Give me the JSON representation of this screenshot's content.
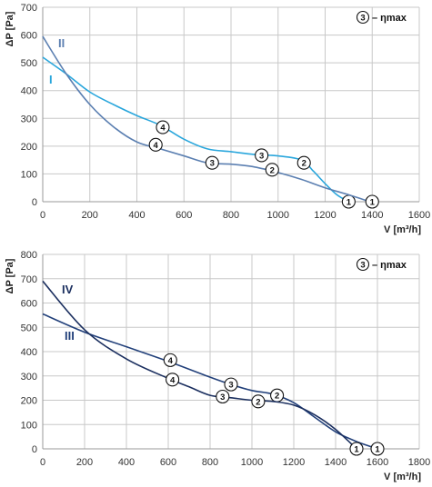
{
  "chart_data": [
    {
      "type": "line",
      "xlabel": "V [m³/h]",
      "ylabel": "ΔP [Pa]",
      "xlim": [
        0,
        1600
      ],
      "ylim": [
        0,
        700
      ],
      "xticks": [
        0,
        200,
        400,
        600,
        800,
        1000,
        1200,
        1400,
        1600
      ],
      "yticks": [
        0,
        100,
        200,
        300,
        400,
        500,
        600,
        700
      ],
      "grid": true,
      "legend_note": {
        "marker": "3",
        "text": "– ηmax"
      },
      "series": [
        {
          "name": "I",
          "color": "#29a6dc",
          "x": [
            0,
            100,
            200,
            300,
            400,
            500,
            600,
            700,
            800,
            900,
            1000,
            1100,
            1150,
            1200,
            1250,
            1300
          ],
          "y": [
            520,
            460,
            395,
            350,
            310,
            275,
            225,
            190,
            180,
            170,
            165,
            150,
            110,
            65,
            25,
            0
          ],
          "markers": [
            {
              "label": "4",
              "x": 510,
              "y": 268
            },
            {
              "label": "3",
              "x": 930,
              "y": 167
            },
            {
              "label": "2",
              "x": 1110,
              "y": 140
            },
            {
              "label": "1",
              "x": 1300,
              "y": 0
            }
          ]
        },
        {
          "name": "II",
          "color": "#5b7fb1",
          "x": [
            0,
            100,
            200,
            300,
            400,
            500,
            600,
            700,
            800,
            900,
            1000,
            1100,
            1200,
            1300,
            1390
          ],
          "y": [
            595,
            460,
            350,
            270,
            215,
            190,
            165,
            140,
            135,
            125,
            105,
            80,
            50,
            25,
            0
          ],
          "markers": [
            {
              "label": "4",
              "x": 480,
              "y": 205
            },
            {
              "label": "3",
              "x": 720,
              "y": 140
            },
            {
              "label": "2",
              "x": 975,
              "y": 115
            },
            {
              "label": "1",
              "x": 1400,
              "y": 0
            }
          ]
        }
      ]
    },
    {
      "type": "line",
      "xlabel": "V [m³/h]",
      "ylabel": "ΔP [Pa]",
      "xlim": [
        0,
        1800
      ],
      "ylim": [
        0,
        800
      ],
      "xticks": [
        0,
        200,
        400,
        600,
        800,
        1000,
        1200,
        1400,
        1600,
        1800
      ],
      "yticks": [
        0,
        100,
        200,
        300,
        400,
        500,
        600,
        700,
        800
      ],
      "grid": true,
      "legend_note": {
        "marker": "3",
        "text": "– ηmax"
      },
      "series": [
        {
          "name": "III",
          "color": "#22407a",
          "x": [
            0,
            200,
            400,
            600,
            800,
            900,
            1000,
            1100,
            1200,
            1300,
            1400,
            1500,
            1600
          ],
          "y": [
            555,
            480,
            420,
            360,
            295,
            265,
            240,
            225,
            190,
            130,
            70,
            30,
            0
          ],
          "markers": [
            {
              "label": "4",
              "x": 610,
              "y": 365
            },
            {
              "label": "3",
              "x": 900,
              "y": 265
            },
            {
              "label": "2",
              "x": 1120,
              "y": 220
            },
            {
              "label": "1",
              "x": 1600,
              "y": 0
            }
          ]
        },
        {
          "name": "IV",
          "color": "#1b2f5f",
          "x": [
            0,
            200,
            400,
            600,
            700,
            800,
            900,
            1000,
            1100,
            1200,
            1300,
            1400,
            1500
          ],
          "y": [
            690,
            490,
            370,
            290,
            255,
            220,
            210,
            200,
            195,
            180,
            140,
            80,
            0
          ],
          "markers": [
            {
              "label": "4",
              "x": 620,
              "y": 285
            },
            {
              "label": "3",
              "x": 860,
              "y": 215
            },
            {
              "label": "2",
              "x": 1030,
              "y": 195
            },
            {
              "label": "1",
              "x": 1500,
              "y": 0
            }
          ]
        }
      ]
    }
  ]
}
